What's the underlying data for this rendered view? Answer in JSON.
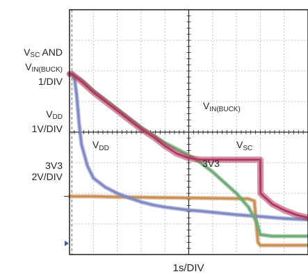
{
  "chart_data": {
    "type": "line",
    "x_div_label": "1s/DIV",
    "x_divisions": 10,
    "y_divisions": 8,
    "channel_labels": {
      "vsc_vin": {
        "line1_pre": "V",
        "line1_sub": "SC",
        "line1_post": " AND",
        "line2_pre": "V",
        "line2_sub": "IN(BUCK)",
        "scale": "1/DIV"
      },
      "vdd": {
        "pre": "V",
        "sub": "DD",
        "scale": "1V/DIV"
      },
      "v3v3": {
        "name": "3V3",
        "scale": "2V/DIV"
      }
    },
    "annotations": {
      "vin_buck": {
        "pre": "V",
        "sub": "IN(BUCK)"
      },
      "vdd": {
        "pre": "V",
        "sub": "DD"
      },
      "vsc": {
        "pre": "V",
        "sub": "SC"
      },
      "v3v3": "3V3"
    },
    "trigger_marker_div": 0.1,
    "series": [
      {
        "key": "vsc",
        "color": "#6dab75",
        "x_div": [
          0.0,
          0.1,
          0.5,
          1.0,
          1.5,
          2.0,
          2.5,
          3.0,
          3.5,
          4.0,
          4.5,
          5.0,
          5.5,
          6.0,
          6.5,
          7.0,
          7.5,
          7.85,
          8.0,
          8.5,
          9.0,
          9.5,
          10.0
        ],
        "y_div": [
          5.9,
          5.9,
          5.7,
          5.35,
          5.05,
          4.75,
          4.45,
          4.15,
          3.9,
          3.65,
          3.45,
          3.25,
          3.0,
          2.7,
          2.35,
          2.0,
          1.55,
          1.05,
          0.65,
          0.6,
          0.6,
          0.6,
          0.6
        ]
      },
      {
        "key": "vin_buck",
        "color": "#b2385f",
        "x_div": [
          0.0,
          0.1,
          0.5,
          1.0,
          1.5,
          2.0,
          2.5,
          3.0,
          3.5,
          4.0,
          4.5,
          5.0,
          5.5,
          6.0,
          6.5,
          7.0,
          7.5,
          8.0,
          8.01,
          8.5,
          9.0,
          9.5,
          10.0
        ],
        "y_div": [
          5.9,
          5.9,
          5.65,
          5.3,
          5.0,
          4.7,
          4.4,
          4.1,
          3.85,
          3.55,
          3.3,
          3.15,
          3.1,
          3.1,
          3.1,
          3.1,
          3.1,
          3.1,
          2.0,
          1.65,
          1.45,
          1.3,
          1.2
        ]
      },
      {
        "key": "vdd",
        "color": "#7e89c4",
        "x_div": [
          0.0,
          0.1,
          0.2,
          0.3,
          0.4,
          0.5,
          0.75,
          1.0,
          1.5,
          2.0,
          2.5,
          3.0,
          3.5,
          4.0,
          4.5,
          5.0,
          5.5,
          6.0,
          6.5,
          7.0,
          7.5,
          8.0,
          8.5,
          9.0,
          9.5,
          10.0
        ],
        "y_div": [
          5.9,
          5.9,
          5.8,
          5.2,
          4.3,
          3.6,
          2.9,
          2.5,
          2.2,
          2.0,
          1.85,
          1.72,
          1.62,
          1.55,
          1.5,
          1.45,
          1.42,
          1.38,
          1.34,
          1.3,
          1.27,
          1.24,
          1.21,
          1.18,
          1.16,
          1.14
        ]
      },
      {
        "key": "v3v3",
        "color": "#c98f55",
        "x_div": [
          0.0,
          1.0,
          2.0,
          3.0,
          4.0,
          5.0,
          6.0,
          7.0,
          7.5,
          7.75,
          7.9,
          8.0,
          9.0,
          10.0
        ],
        "y_div": [
          1.9,
          1.9,
          1.88,
          1.87,
          1.86,
          1.85,
          1.84,
          1.83,
          1.82,
          1.75,
          0.4,
          0.3,
          0.3,
          0.3
        ]
      }
    ]
  }
}
